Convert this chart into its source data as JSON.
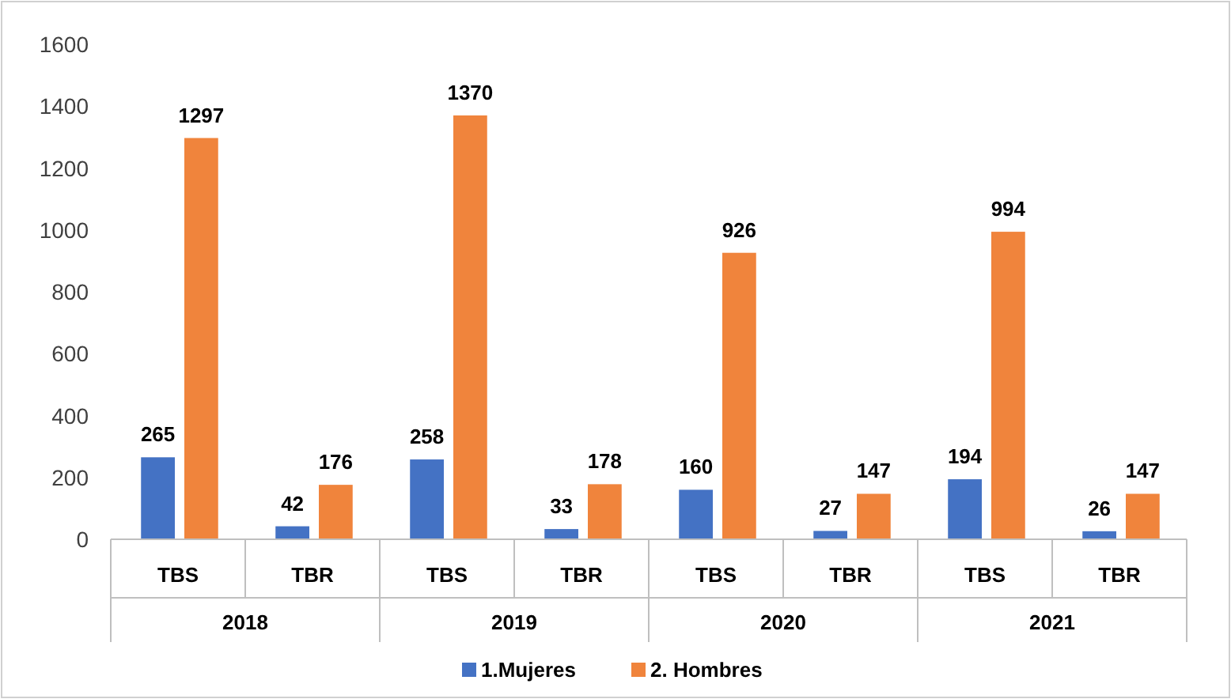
{
  "chart_data": {
    "type": "bar",
    "categories": [
      "TBS",
      "TBR",
      "TBS",
      "TBR",
      "TBS",
      "TBR",
      "TBS",
      "TBR"
    ],
    "series": [
      {
        "name": "1.Mujeres",
        "color": "#4472c4",
        "values": [
          265,
          42,
          258,
          33,
          160,
          27,
          194,
          26
        ]
      },
      {
        "name": "2. Hombres",
        "color": "#f0843c",
        "values": [
          1297,
          176,
          1370,
          178,
          926,
          147,
          994,
          147
        ]
      }
    ],
    "annotations": [
      "2018",
      "2019",
      "2020",
      "2021"
    ],
    "ylim": [
      0,
      1600
    ],
    "yticks": [
      0,
      200,
      400,
      600,
      800,
      1000,
      1200,
      1400,
      1600
    ],
    "data_labels": true,
    "legend": "bottom",
    "grid": false
  }
}
